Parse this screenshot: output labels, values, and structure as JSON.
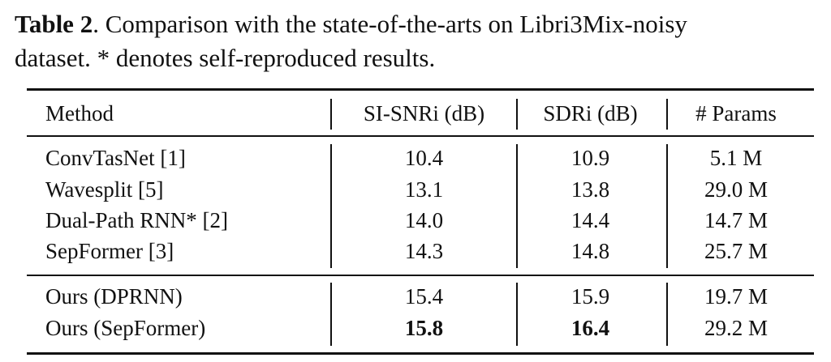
{
  "caption": {
    "label": "Table 2",
    "line1_rest": ". Comparison with the state-of-the-arts on Libri3Mix-noisy",
    "line2": "dataset. * denotes self-reproduced results."
  },
  "table": {
    "headers": [
      "Method",
      "SI-SNRi (dB)",
      "SDRi (dB)",
      "# Params"
    ],
    "groups": [
      [
        {
          "method": "ConvTasNet [1]",
          "si_snri": "10.4",
          "sdri": "10.9",
          "params": "5.1 M"
        },
        {
          "method": "Wavesplit [5]",
          "si_snri": "13.1",
          "sdri": "13.8",
          "params": "29.0 M"
        },
        {
          "method": "Dual-Path RNN* [2]",
          "si_snri": "14.0",
          "sdri": "14.4",
          "params": "14.7 M"
        },
        {
          "method": "SepFormer [3]",
          "si_snri": "14.3",
          "sdri": "14.8",
          "params": "25.7 M"
        }
      ],
      [
        {
          "method": "Ours (DPRNN)",
          "si_snri": "15.4",
          "sdri": "15.9",
          "params": "19.7 M"
        },
        {
          "method": "Ours (SepFormer)",
          "si_snri": "15.8",
          "sdri": "16.4",
          "params": "29.2 M",
          "bold": [
            "si_snri",
            "sdri"
          ]
        }
      ]
    ]
  }
}
